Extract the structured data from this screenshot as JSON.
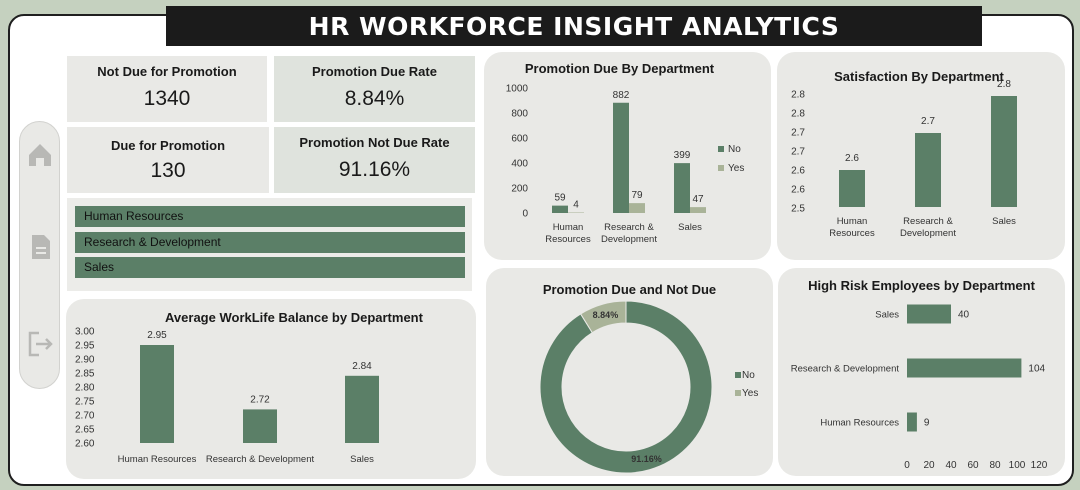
{
  "title": "HR WORKFORCE INSIGHT ANALYTICS",
  "colors": {
    "primary": "#5b7f67",
    "secondary": "#a9b398",
    "panel": "#e9e9e6"
  },
  "sidebar": {
    "icons": [
      "home-icon",
      "document-icon",
      "logout-icon"
    ]
  },
  "kpis": {
    "not_due": {
      "label": "Not Due for Promotion",
      "value": "1340"
    },
    "due_rate": {
      "label": "Promotion Due Rate",
      "value": "8.84%"
    },
    "due": {
      "label": "Due for Promotion",
      "value": "130"
    },
    "not_due_rate": {
      "label": "Promotion Not Due Rate",
      "value": "91.16%"
    }
  },
  "slicer": {
    "items": [
      "Human Resources",
      "Research & Development",
      "Sales"
    ]
  },
  "chart_data": [
    {
      "id": "promo_by_dept",
      "type": "bar",
      "title": "Promotion Due By Department",
      "categories": [
        "Human Resources",
        "Research & Development",
        "Sales"
      ],
      "series": [
        {
          "name": "No",
          "values": [
            59,
            882,
            399
          ]
        },
        {
          "name": "Yes",
          "values": [
            4,
            79,
            47
          ]
        }
      ],
      "ylim": [
        0,
        1000
      ],
      "yticks": [
        0,
        200,
        400,
        600,
        800,
        1000
      ],
      "legend": "right"
    },
    {
      "id": "satisfaction",
      "type": "bar",
      "title": "Satisfaction By Department",
      "categories": [
        "Human Resources",
        "Research & Development",
        "Sales"
      ],
      "values": [
        2.6,
        2.7,
        2.8
      ],
      "data_labels": [
        "2.6",
        "2.7",
        "2.8"
      ],
      "ylim": [
        2.5,
        2.8
      ],
      "yticks": [
        "2.8",
        "2.8",
        "2.7",
        "2.7",
        "2.6",
        "2.6",
        "2.5"
      ]
    },
    {
      "id": "worklife",
      "type": "bar",
      "title": "Average WorkLife Balance by Department",
      "categories": [
        "Human Resources",
        "Research & Development",
        "Sales"
      ],
      "values": [
        2.95,
        2.72,
        2.84
      ],
      "ylim": [
        2.6,
        3.0
      ],
      "yticks": [
        "3.00",
        "2.95",
        "2.90",
        "2.85",
        "2.80",
        "2.75",
        "2.70",
        "2.65",
        "2.60"
      ]
    },
    {
      "id": "promo_donut",
      "type": "pie",
      "title": "Promotion Due and  Not Due",
      "labels": [
        "No",
        "Yes"
      ],
      "values": [
        91.16,
        8.84
      ],
      "data_labels": [
        "91.16%",
        "8.84%"
      ],
      "legend": "right"
    },
    {
      "id": "high_risk",
      "type": "bar",
      "orientation": "horizontal",
      "title": "High Risk Employees by Department",
      "categories": [
        "Sales",
        "Research & Development",
        "Human Resources"
      ],
      "values": [
        40,
        104,
        9
      ],
      "xlim": [
        0,
        120
      ],
      "xticks": [
        0,
        20,
        40,
        60,
        80,
        100,
        120
      ]
    }
  ]
}
